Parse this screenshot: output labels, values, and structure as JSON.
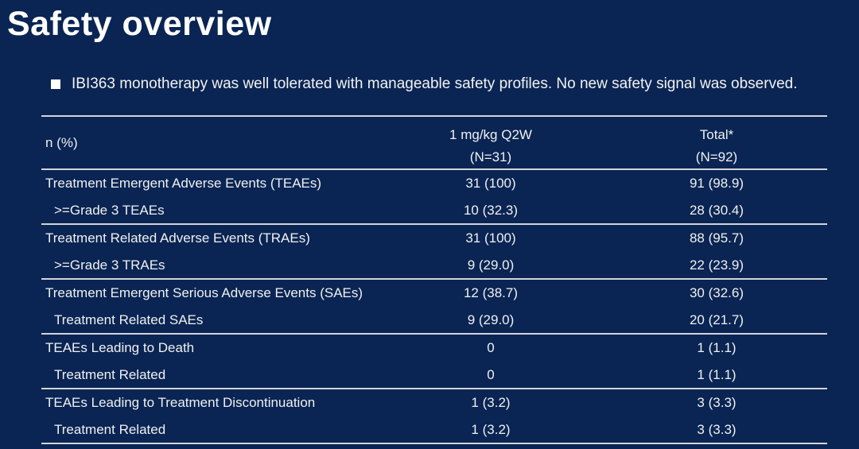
{
  "title": "Safety overview",
  "bullet": {
    "text": "IBI363 monotherapy was well tolerated with manageable safety profiles. No new safety signal was observed."
  },
  "table": {
    "columns": {
      "label_header": "n (%)",
      "group1_name": "1 mg/kg Q2W",
      "group1_n": "(N=31)",
      "group2_name": "Total*",
      "group2_n": "(N=92)"
    },
    "rows": [
      {
        "label": "Treatment Emergent Adverse Events (TEAEs)",
        "q2w": "31 (100)",
        "total": "91 (98.9)"
      },
      {
        "label": ">=Grade 3 TEAEs",
        "q2w": "10 (32.3)",
        "total": "28 (30.4)"
      },
      {
        "label": "Treatment Related Adverse Events (TRAEs)",
        "q2w": "31 (100)",
        "total": "88 (95.7)"
      },
      {
        "label": ">=Grade 3 TRAEs",
        "q2w": "9 (29.0)",
        "total": "22 (23.9)"
      },
      {
        "label": "Treatment Emergent Serious Adverse Events (SAEs)",
        "q2w": "12 (38.7)",
        "total": "30 (32.6)"
      },
      {
        "label": "Treatment Related SAEs",
        "q2w": "9 (29.0)",
        "total": "20 (21.7)"
      },
      {
        "label": "TEAEs Leading to Death",
        "q2w": "0",
        "total": "1 (1.1)"
      },
      {
        "label": "Treatment Related",
        "q2w": "0",
        "total": "1 (1.1)"
      },
      {
        "label": "TEAEs Leading to Treatment Discontinuation",
        "q2w": "1 (3.2)",
        "total": "3 (3.3)"
      },
      {
        "label": "Treatment Related",
        "q2w": "1 (3.2)",
        "total": "3 (3.3)"
      }
    ]
  },
  "colors": {
    "background": "#0A2553",
    "text": "#F0F0F0",
    "title_text": "#FFFFFF",
    "table_line": "#D2D5DA"
  }
}
